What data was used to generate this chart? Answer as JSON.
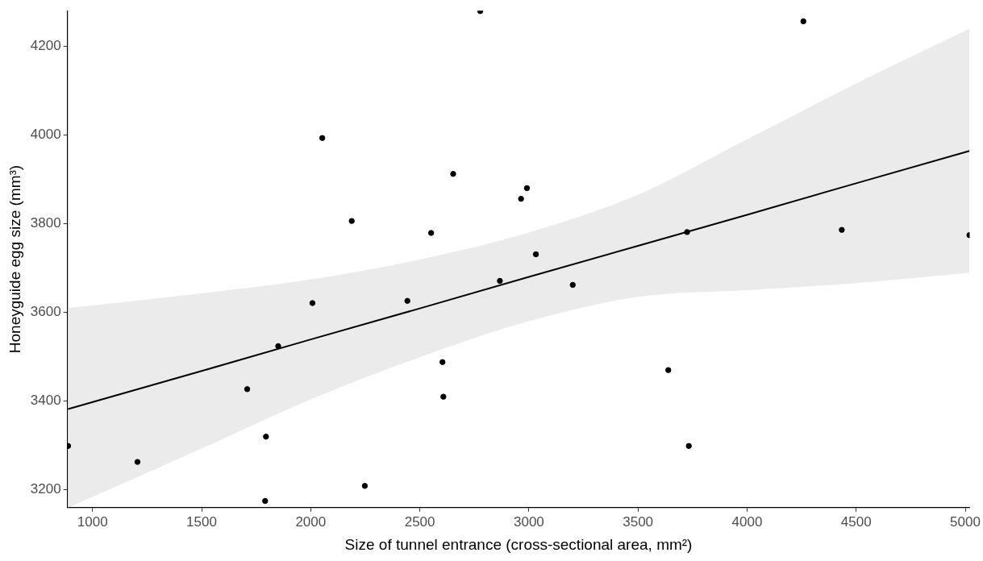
{
  "chart_data": {
    "type": "scatter",
    "xlabel": "Size of tunnel entrance (cross-sectional area, mm²)",
    "ylabel": "Honeyguide egg size (mm³)",
    "xlim": [
      885,
      5020
    ],
    "ylim": [
      3160,
      4280
    ],
    "xticks": [
      1000,
      1500,
      2000,
      2500,
      3000,
      3500,
      4000,
      4500,
      5000
    ],
    "yticks": [
      3200,
      3400,
      3600,
      3800,
      4000,
      4200
    ],
    "grid": false,
    "legend": false,
    "marker": "circle",
    "series": [
      {
        "type": "scatter",
        "color": "#000000",
        "x": [
          888,
          1206,
          1709,
          1795,
          1791,
          1851,
          2008,
          2053,
          2188,
          2248,
          2443,
          2552,
          2604,
          2608,
          2653,
          2777,
          2867,
          2964,
          2991,
          3032,
          3201,
          3639,
          3725,
          3733,
          4258,
          4434,
          5019
        ],
        "values": [
          3299,
          3263,
          3427,
          3320,
          3175,
          3524,
          3621,
          3993,
          3806,
          3209,
          3626,
          3779,
          3488,
          3410,
          3912,
          4279,
          3671,
          3856,
          3880,
          3731,
          3662,
          3470,
          3781,
          3299,
          4256,
          3786,
          3774
        ]
      },
      {
        "type": "line",
        "color": "#000000",
        "x": [
          888,
          1500,
          2000,
          2500,
          3000,
          3500,
          4000,
          4500,
          5019
        ],
        "values": [
          3382,
          3468,
          3539,
          3609,
          3680,
          3750,
          3820,
          3891,
          3964
        ],
        "lower": [
          3160,
          3293,
          3404,
          3499,
          3580,
          3635,
          3650,
          3666,
          3689
        ],
        "upper": [
          3610,
          3643,
          3674,
          3719,
          3780,
          3865,
          3990,
          4116,
          4239
        ],
        "marker": "none",
        "line_style": "solid"
      }
    ]
  }
}
